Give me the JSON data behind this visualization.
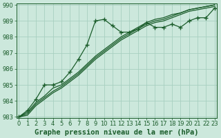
{
  "title": "Graphe pression niveau de la mer (hPa)",
  "background_color": "#cce8dc",
  "grid_color": "#a8cfc0",
  "line_color": "#1a5c2a",
  "x_values": [
    0,
    1,
    2,
    3,
    4,
    5,
    6,
    7,
    8,
    9,
    10,
    11,
    12,
    13,
    14,
    15,
    16,
    17,
    18,
    19,
    20,
    21,
    22,
    23
  ],
  "series1": [
    983.0,
    983.4,
    984.1,
    985.0,
    985.0,
    985.2,
    985.8,
    986.6,
    987.5,
    989.0,
    989.1,
    988.7,
    988.3,
    988.3,
    988.5,
    988.9,
    988.6,
    988.6,
    988.8,
    988.6,
    989.0,
    989.2,
    989.2,
    989.8
  ],
  "series2": [
    983.0,
    983.3,
    983.9,
    984.3,
    984.8,
    985.0,
    985.4,
    985.8,
    986.3,
    986.8,
    987.2,
    987.6,
    988.0,
    988.3,
    988.6,
    988.9,
    989.1,
    989.2,
    989.4,
    989.5,
    989.7,
    989.8,
    989.9,
    990.0
  ],
  "series3": [
    983.0,
    983.2,
    983.8,
    984.2,
    984.6,
    984.9,
    985.3,
    985.7,
    986.2,
    986.7,
    987.1,
    987.5,
    987.9,
    988.2,
    988.5,
    988.8,
    989.0,
    989.1,
    989.3,
    989.5,
    989.7,
    989.8,
    989.9,
    990.0
  ],
  "series4": [
    983.0,
    983.1,
    983.7,
    984.1,
    984.5,
    984.8,
    985.2,
    985.6,
    986.1,
    986.6,
    987.0,
    987.4,
    987.8,
    988.1,
    988.4,
    988.7,
    988.9,
    989.0,
    989.2,
    989.4,
    989.6,
    989.7,
    989.8,
    989.9
  ],
  "ylim": [
    983,
    990
  ],
  "xlim": [
    0,
    23
  ],
  "yticks": [
    983,
    984,
    985,
    986,
    987,
    988,
    989,
    990
  ],
  "xticks": [
    0,
    1,
    2,
    3,
    4,
    5,
    6,
    7,
    8,
    9,
    10,
    11,
    12,
    13,
    14,
    15,
    16,
    17,
    18,
    19,
    20,
    21,
    22,
    23
  ],
  "marker": "+",
  "markersize": 4,
  "linewidth": 0.9,
  "title_fontsize": 7.5,
  "tick_fontsize": 6
}
